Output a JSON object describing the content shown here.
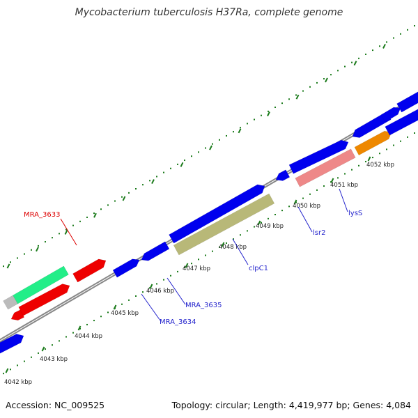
{
  "title": "Mycobacterium tuberculosis H37Ra, complete genome",
  "footer": {
    "accession": "Accession: NC_009525",
    "summary": "Topology: circular; Length: 4,419,977 bp; Genes: 4,084"
  },
  "colors": {
    "backbone": "#888888",
    "ticks": "#1a7a1a",
    "gene_default": "#0000ee",
    "label_red": "#dd0000",
    "label_blue": "#2222cc"
  },
  "ticks": [
    {
      "label": "4042 kbp"
    },
    {
      "label": "4043 kbp"
    },
    {
      "label": "4044 kbp"
    },
    {
      "label": "4045 kbp"
    },
    {
      "label": "4046 kbp"
    },
    {
      "label": "4047 kbp"
    },
    {
      "label": "4048 kbp"
    },
    {
      "label": "4049 kbp"
    },
    {
      "label": "4050 kbp"
    },
    {
      "label": "4051 kbp"
    },
    {
      "label": "4052 kbp"
    }
  ],
  "gene_labels": [
    {
      "text": "MRA_3633",
      "color": "red"
    },
    {
      "text": "MRA_3634",
      "color": "blue"
    },
    {
      "text": "MRA_3635",
      "color": "blue"
    },
    {
      "text": "clpC1",
      "color": "blue"
    },
    {
      "text": "lsr2",
      "color": "blue"
    },
    {
      "text": "lysS",
      "color": "blue"
    }
  ],
  "features": [
    {
      "name": "gene-blue",
      "color": "#0000ee"
    },
    {
      "name": "gene-red",
      "color": "#ee0000"
    },
    {
      "name": "gene-green",
      "color": "#22ee88"
    },
    {
      "name": "gene-gray",
      "color": "#bbbbbb"
    },
    {
      "name": "gene-olive",
      "color": "#b8b878"
    },
    {
      "name": "gene-pink",
      "color": "#ee8888"
    },
    {
      "name": "gene-orange",
      "color": "#ee8800"
    }
  ]
}
